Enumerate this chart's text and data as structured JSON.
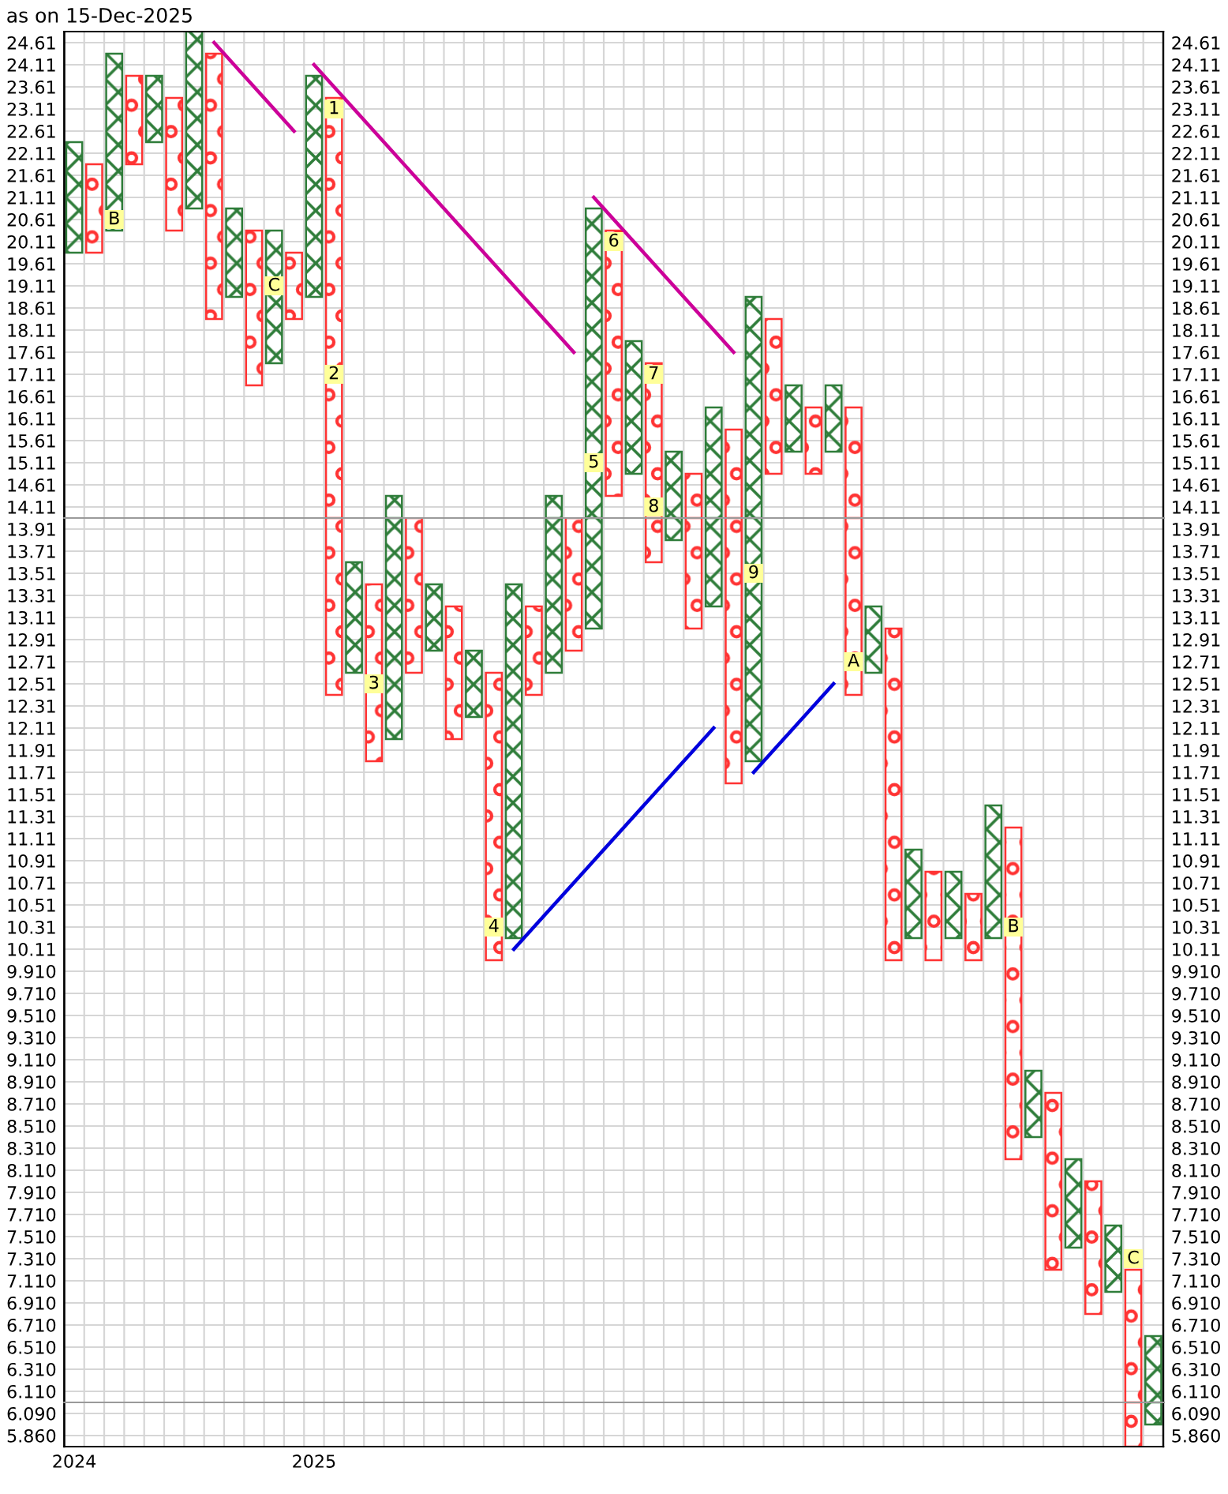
{
  "chart_data": [
    {
      "type": "bar",
      "title": "as on 15-Dec-2025",
      "tick_labels": "y",
      "grid": true,
      "categories": [
        "2024",
        null,
        null,
        null,
        null,
        null,
        null,
        null,
        null,
        null,
        null,
        null,
        "2025",
        null,
        null,
        null,
        null,
        null,
        null,
        null,
        null,
        null,
        null,
        null,
        null,
        null,
        null,
        null,
        null,
        null,
        null,
        null,
        null,
        null,
        null,
        null,
        null,
        null,
        null,
        null,
        null,
        null,
        null,
        null,
        null,
        null,
        null,
        null,
        null,
        null,
        null,
        null,
        null,
        null,
        null
      ],
      "ylim": [
        13.86,
        24.86
      ],
      "yticks": [
        24.61,
        24.11,
        23.61,
        23.11,
        22.61,
        22.11,
        21.61,
        21.11,
        20.61,
        20.11,
        19.61,
        19.11,
        18.61,
        18.11,
        17.61,
        17.11,
        16.61,
        16.11,
        15.61,
        15.11,
        14.61,
        14.11
      ],
      "y2lim": [
        13.86,
        24.86
      ],
      "y2ticks": [
        24.61,
        24.11,
        23.61,
        23.11,
        22.61,
        22.11,
        21.61,
        21.11,
        20.61,
        20.11,
        19.61,
        19.11,
        18.61,
        18.11,
        17.61,
        17.11,
        16.61,
        16.11,
        15.61,
        15.11,
        14.61,
        14.11
      ],
      "annotations": [
        "B",
        "C",
        "1",
        "5",
        "6",
        "7",
        "2",
        "8"
      ],
      "series": [
        {
          "marker": "cross",
          "color": "#2f7d3a",
          "values": [
            2.5,
            null,
            4.0,
            null,
            1.5,
            null,
            4.0,
            null,
            2.0,
            null,
            3.0,
            null,
            5.0,
            null,
            null,
            null,
            0.5,
            null,
            null,
            null,
            null,
            null,
            null,
            null,
            0.5,
            null,
            7.0,
            null,
            3.0,
            null,
            1.5,
            null,
            2.5,
            null,
            5.0,
            null,
            1.5,
            null,
            1.5,
            null,
            null,
            null,
            null,
            null,
            null,
            null,
            null,
            null,
            null,
            null,
            null,
            null,
            null,
            null,
            null
          ],
          "base": [
            19.86,
            null,
            20.36,
            null,
            22.36,
            null,
            20.86,
            null,
            18.86,
            null,
            17.36,
            null,
            18.86,
            null,
            null,
            null,
            13.86,
            null,
            null,
            null,
            null,
            null,
            null,
            null,
            13.86,
            null,
            13.86,
            null,
            14.86,
            null,
            13.86,
            null,
            13.86,
            null,
            13.86,
            null,
            15.36,
            null,
            15.36,
            null,
            null,
            null,
            null,
            null,
            null,
            null,
            null,
            null,
            null,
            null,
            null,
            null,
            null,
            null,
            null
          ]
        },
        {
          "marker": "circle",
          "color": "#ff3333",
          "values": [
            null,
            2.0,
            null,
            2.0,
            null,
            3.0,
            null,
            6.0,
            null,
            3.5,
            null,
            1.5,
            null,
            9.5,
            null,
            null,
            null,
            null,
            null,
            null,
            null,
            null,
            null,
            null,
            null,
            null,
            null,
            6.0,
            null,
            3.5,
            null,
            1.0,
            null,
            2.0,
            null,
            3.5,
            null,
            1.5,
            null,
            2.5,
            null,
            null,
            null,
            null,
            null,
            null,
            null,
            null,
            null,
            null,
            null,
            null,
            null,
            null,
            null
          ],
          "base": [
            null,
            19.86,
            null,
            21.86,
            null,
            20.36,
            null,
            18.36,
            null,
            16.86,
            null,
            18.36,
            null,
            13.86,
            null,
            null,
            null,
            null,
            null,
            null,
            null,
            null,
            null,
            null,
            null,
            null,
            null,
            14.36,
            null,
            13.86,
            null,
            13.86,
            null,
            13.86,
            null,
            14.86,
            null,
            14.86,
            null,
            13.86,
            null,
            null,
            null,
            null,
            null,
            null,
            null,
            null,
            null,
            null,
            null,
            null,
            null,
            null,
            null
          ]
        },
        {
          "type": "scatter",
          "marker": "square",
          "color": "#ffff99",
          "values": [
            null,
            null,
            20.61,
            null,
            null,
            null,
            null,
            null,
            null,
            null,
            19.11,
            null,
            null,
            23.11,
            null,
            null,
            null,
            null,
            null,
            null,
            null,
            null,
            null,
            null,
            null,
            null,
            15.11,
            20.11,
            null,
            17.11,
            null,
            null,
            null,
            null,
            null,
            null,
            null,
            null,
            null,
            null,
            null,
            null,
            null,
            null,
            null,
            null,
            null,
            null,
            null,
            null,
            null,
            null,
            null,
            null,
            null
          ]
        },
        {
          "type": "scatter",
          "marker": "square",
          "color": "#ffff99",
          "values": [
            null,
            null,
            null,
            null,
            null,
            null,
            null,
            null,
            null,
            null,
            null,
            null,
            null,
            17.11,
            null,
            null,
            null,
            null,
            null,
            null,
            null,
            null,
            null,
            null,
            null,
            null,
            null,
            null,
            null,
            14.11,
            null,
            null,
            null,
            null,
            null,
            null,
            null,
            null,
            null,
            null,
            null,
            null,
            null,
            null,
            null,
            null,
            null,
            null,
            null,
            null,
            null,
            null,
            null,
            null,
            null
          ]
        },
        {
          "type": "line",
          "color": "#cc0099",
          "values": [
            null,
            null,
            null,
            null,
            null,
            null,
            null,
            24.61,
            24.11,
            23.61,
            23.11,
            22.61,
            null,
            null,
            null,
            null,
            null,
            null,
            null,
            null,
            null,
            null,
            null,
            null,
            null,
            null,
            null,
            null,
            null,
            null,
            null,
            null,
            null,
            null,
            null,
            null,
            null,
            null,
            null,
            null,
            null,
            null,
            null,
            null,
            null,
            null,
            null,
            null,
            null,
            null,
            null,
            null,
            null,
            null,
            null
          ]
        },
        {
          "type": "line",
          "color": "#cc0099",
          "values": [
            null,
            null,
            null,
            null,
            null,
            null,
            null,
            null,
            null,
            null,
            null,
            null,
            24.11,
            23.61,
            23.11,
            22.61,
            22.11,
            21.61,
            21.11,
            20.61,
            20.11,
            19.61,
            19.11,
            18.61,
            18.11,
            17.61,
            null,
            null,
            null,
            null,
            null,
            null,
            null,
            null,
            null,
            null,
            null,
            null,
            null,
            null,
            null,
            null,
            null,
            null,
            null,
            null,
            null,
            null,
            null,
            null,
            null,
            null,
            null,
            null,
            null
          ]
        },
        {
          "type": "line",
          "color": "#cc0099",
          "values": [
            null,
            null,
            null,
            null,
            null,
            null,
            null,
            null,
            null,
            null,
            null,
            null,
            null,
            null,
            null,
            null,
            null,
            null,
            null,
            null,
            null,
            null,
            null,
            null,
            null,
            null,
            21.11,
            20.61,
            20.11,
            19.61,
            19.11,
            18.61,
            18.11,
            17.61,
            null,
            null,
            null,
            null,
            null,
            null,
            null,
            null,
            null,
            null,
            null,
            null,
            null,
            null,
            null,
            null,
            null,
            null,
            null,
            null,
            null
          ]
        }
      ]
    },
    {
      "type": "bar",
      "tick_labels": "y",
      "grid": true,
      "categories": [
        "2024",
        null,
        null,
        null,
        null,
        null,
        null,
        null,
        null,
        null,
        null,
        null,
        "2025",
        null,
        null,
        null,
        null,
        null,
        null,
        null,
        null,
        null,
        null,
        null,
        null,
        null,
        null,
        null,
        null,
        null,
        null,
        null,
        null,
        null,
        null,
        null,
        null,
        null,
        null,
        null,
        null,
        null,
        null,
        null,
        null,
        null,
        null,
        null,
        null,
        null,
        null,
        null,
        null,
        null,
        null
      ],
      "ylim": [
        6.01,
        14.01
      ],
      "yticks": [
        13.91,
        13.71,
        13.51,
        13.31,
        13.11,
        12.91,
        12.71,
        12.51,
        12.31,
        12.11,
        11.91,
        11.71,
        11.51,
        11.31,
        11.11,
        10.91,
        10.71,
        10.51,
        10.31,
        10.11,
        {
          "value": 9.91,
          "label": "9.910"
        },
        {
          "value": 9.71,
          "label": "9.710"
        },
        {
          "value": 9.51,
          "label": "9.510"
        },
        {
          "value": 9.31,
          "label": "9.310"
        },
        {
          "value": 9.11,
          "label": "9.110"
        },
        {
          "value": 8.91,
          "label": "8.910"
        },
        {
          "value": 8.71,
          "label": "8.710"
        },
        {
          "value": 8.51,
          "label": "8.510"
        },
        {
          "value": 8.31,
          "label": "8.310"
        },
        {
          "value": 8.11,
          "label": "8.110"
        },
        {
          "value": 7.91,
          "label": "7.910"
        },
        {
          "value": 7.71,
          "label": "7.710"
        },
        {
          "value": 7.51,
          "label": "7.510"
        },
        {
          "value": 7.31,
          "label": "7.310"
        },
        {
          "value": 7.11,
          "label": "7.110"
        },
        {
          "value": 6.91,
          "label": "6.910"
        },
        {
          "value": 6.71,
          "label": "6.710"
        },
        {
          "value": 6.51,
          "label": "6.510"
        },
        {
          "value": 6.31,
          "label": "6.310"
        },
        {
          "value": 6.11,
          "label": "6.110"
        }
      ],
      "y2lim": [
        6.01,
        14.01
      ],
      "y2ticks": [
        13.91,
        13.71,
        13.51,
        13.31,
        13.11,
        12.91,
        12.71,
        12.51,
        12.31,
        12.11,
        11.91,
        11.71,
        11.51,
        11.31,
        11.11,
        10.91,
        10.71,
        10.51,
        10.31,
        10.11,
        {
          "value": 9.91,
          "label": "9.910"
        },
        {
          "value": 9.71,
          "label": "9.710"
        },
        {
          "value": 9.51,
          "label": "9.510"
        },
        {
          "value": 9.31,
          "label": "9.310"
        },
        {
          "value": 9.11,
          "label": "9.110"
        },
        {
          "value": 8.91,
          "label": "8.910"
        },
        {
          "value": 8.71,
          "label": "8.710"
        },
        {
          "value": 8.51,
          "label": "8.510"
        },
        {
          "value": 8.31,
          "label": "8.310"
        },
        {
          "value": 8.11,
          "label": "8.110"
        },
        {
          "value": 7.91,
          "label": "7.910"
        },
        {
          "value": 7.71,
          "label": "7.710"
        },
        {
          "value": 7.51,
          "label": "7.510"
        },
        {
          "value": 7.31,
          "label": "7.310"
        },
        {
          "value": 7.11,
          "label": "7.110"
        },
        {
          "value": 6.91,
          "label": "6.910"
        },
        {
          "value": 6.71,
          "label": "6.710"
        },
        {
          "value": 6.51,
          "label": "6.510"
        },
        {
          "value": 6.31,
          "label": "6.310"
        },
        {
          "value": 6.11,
          "label": "6.110"
        }
      ],
      "annotations": [
        "3",
        "4",
        "9",
        "A",
        "B",
        "C"
      ],
      "series": [
        {
          "marker": "cross",
          "color": "#2f7d3a",
          "values": [
            null,
            null,
            null,
            null,
            null,
            null,
            null,
            null,
            null,
            null,
            null,
            null,
            null,
            null,
            1.0,
            null,
            2.0,
            null,
            0.6,
            null,
            0.6,
            null,
            3.2,
            null,
            1.4,
            null,
            1.0,
            null,
            null,
            null,
            0.2,
            null,
            0.8,
            null,
            2.2,
            null,
            null,
            null,
            null,
            null,
            0.6,
            null,
            0.8,
            null,
            0.6,
            null,
            1.2,
            null,
            0.6,
            null,
            0.8,
            null,
            0.6,
            null,
            0.6
          ],
          "base": [
            null,
            null,
            null,
            null,
            null,
            null,
            null,
            null,
            null,
            null,
            null,
            null,
            null,
            null,
            12.61,
            null,
            12.01,
            null,
            12.81,
            null,
            12.21,
            null,
            10.21,
            null,
            12.61,
            null,
            13.01,
            null,
            null,
            null,
            13.81,
            null,
            13.21,
            null,
            11.81,
            null,
            null,
            null,
            null,
            null,
            12.61,
            null,
            10.21,
            null,
            10.21,
            null,
            10.21,
            null,
            8.41,
            null,
            7.41,
            null,
            7.01,
            null,
            6.01
          ]
        },
        {
          "marker": "circle",
          "color": "#ff3333",
          "values": [
            null,
            null,
            null,
            null,
            null,
            null,
            null,
            null,
            null,
            null,
            null,
            null,
            null,
            1.6,
            null,
            1.6,
            null,
            1.4,
            null,
            1.2,
            null,
            2.6,
            null,
            0.8,
            null,
            1.2,
            null,
            null,
            null,
            0.4,
            null,
            1.0,
            null,
            2.4,
            null,
            null,
            null,
            null,
            null,
            1.6,
            null,
            3.0,
            null,
            0.8,
            null,
            0.6,
            null,
            3.0,
            null,
            1.6,
            null,
            1.2,
            null,
            1.2,
            null
          ],
          "base": [
            null,
            null,
            null,
            null,
            null,
            null,
            null,
            null,
            null,
            null,
            null,
            null,
            null,
            12.41,
            null,
            11.81,
            null,
            12.61,
            null,
            12.01,
            null,
            10.01,
            null,
            12.41,
            null,
            12.81,
            null,
            null,
            null,
            13.61,
            null,
            13.01,
            null,
            11.61,
            null,
            null,
            null,
            null,
            null,
            12.41,
            null,
            10.01,
            null,
            10.01,
            null,
            10.01,
            null,
            8.21,
            null,
            7.21,
            null,
            6.81,
            null,
            6.01,
            null
          ]
        },
        {
          "type": "scatter",
          "marker": "square",
          "color": "#ffff99",
          "values": [
            null,
            null,
            null,
            null,
            null,
            null,
            null,
            null,
            null,
            null,
            null,
            null,
            null,
            null,
            null,
            12.51,
            null,
            null,
            null,
            null,
            null,
            10.31,
            null,
            null,
            null,
            null,
            null,
            null,
            null,
            null,
            null,
            null,
            null,
            null,
            13.51,
            null,
            null,
            null,
            null,
            12.71,
            null,
            null,
            null,
            null,
            null,
            null,
            null,
            10.31,
            null,
            null,
            null,
            null,
            null,
            7.31,
            null
          ]
        },
        {
          "type": "line",
          "color": "#0000dd",
          "values": [
            null,
            null,
            null,
            null,
            null,
            null,
            null,
            null,
            null,
            null,
            null,
            null,
            null,
            null,
            null,
            null,
            null,
            null,
            null,
            null,
            null,
            null,
            10.11,
            10.31,
            10.51,
            10.71,
            10.91,
            11.11,
            11.31,
            11.51,
            11.71,
            11.91,
            12.11,
            null,
            null,
            null,
            null,
            null,
            null,
            null,
            null,
            null,
            null,
            null,
            null,
            null,
            null,
            null,
            null,
            null,
            null,
            null,
            null,
            null,
            null
          ]
        },
        {
          "type": "line",
          "color": "#0000dd",
          "values": [
            null,
            null,
            null,
            null,
            null,
            null,
            null,
            null,
            null,
            null,
            null,
            null,
            null,
            null,
            null,
            null,
            null,
            null,
            null,
            null,
            null,
            null,
            null,
            null,
            null,
            null,
            null,
            null,
            null,
            null,
            null,
            null,
            null,
            null,
            11.71,
            11.91,
            12.11,
            12.31,
            12.51,
            null,
            null,
            null,
            null,
            null,
            null,
            null,
            null,
            null,
            null,
            null,
            null,
            null,
            null,
            null,
            null
          ]
        }
      ]
    },
    {
      "type": "bar",
      "grid": true,
      "categories": [
        "2024",
        null,
        null,
        null,
        null,
        null,
        null,
        null,
        null,
        null,
        null,
        null,
        "2025",
        null,
        null,
        null,
        null,
        null,
        null,
        null,
        null,
        null,
        null,
        null,
        null,
        null,
        null,
        null,
        null,
        null,
        null,
        null,
        null,
        null,
        null,
        null,
        null,
        null,
        null,
        null,
        null,
        null,
        null,
        null,
        null,
        null,
        null,
        null,
        null,
        null,
        null,
        null,
        null,
        null,
        null
      ],
      "ylim": [
        5.745,
        6.205
      ],
      "yticks": [
        {
          "value": 6.09,
          "label": "6.090"
        },
        {
          "value": 5.86,
          "label": "5.860"
        }
      ],
      "y2lim": [
        5.745,
        6.205
      ],
      "y2ticks": [
        {
          "value": 6.09,
          "label": "6.090"
        },
        {
          "value": 5.86,
          "label": "5.860"
        }
      ],
      "series": [
        {
          "marker": "cross",
          "color": "#2f7d3a",
          "values": [
            null,
            null,
            null,
            null,
            null,
            null,
            null,
            null,
            null,
            null,
            null,
            null,
            null,
            null,
            null,
            null,
            null,
            null,
            null,
            null,
            null,
            null,
            null,
            null,
            null,
            null,
            null,
            null,
            null,
            null,
            null,
            null,
            null,
            null,
            null,
            null,
            null,
            null,
            null,
            null,
            null,
            null,
            null,
            null,
            null,
            null,
            null,
            null,
            null,
            null,
            null,
            null,
            null,
            null,
            0.23
          ],
          "base": [
            null,
            null,
            null,
            null,
            null,
            null,
            null,
            null,
            null,
            null,
            null,
            null,
            null,
            null,
            null,
            null,
            null,
            null,
            null,
            null,
            null,
            null,
            null,
            null,
            null,
            null,
            null,
            null,
            null,
            null,
            null,
            null,
            null,
            null,
            null,
            null,
            null,
            null,
            null,
            null,
            null,
            null,
            null,
            null,
            null,
            null,
            null,
            null,
            null,
            null,
            null,
            null,
            null,
            null,
            5.975
          ]
        },
        {
          "marker": "circle",
          "color": "#ff3333",
          "values": [
            null,
            null,
            null,
            null,
            null,
            null,
            null,
            null,
            null,
            null,
            null,
            null,
            null,
            null,
            null,
            null,
            null,
            null,
            null,
            null,
            null,
            null,
            null,
            null,
            null,
            null,
            null,
            null,
            null,
            null,
            null,
            null,
            null,
            null,
            null,
            null,
            null,
            null,
            null,
            null,
            null,
            null,
            null,
            null,
            null,
            null,
            null,
            null,
            null,
            null,
            null,
            null,
            null,
            0.46,
            null
          ],
          "base": [
            null,
            null,
            null,
            null,
            null,
            null,
            null,
            null,
            null,
            null,
            null,
            null,
            null,
            null,
            null,
            null,
            null,
            null,
            null,
            null,
            null,
            null,
            null,
            null,
            null,
            null,
            null,
            null,
            null,
            null,
            null,
            null,
            null,
            null,
            null,
            null,
            null,
            null,
            null,
            null,
            null,
            null,
            null,
            null,
            null,
            null,
            null,
            null,
            null,
            null,
            null,
            null,
            null,
            5.745,
            null
          ]
        }
      ]
    }
  ]
}
